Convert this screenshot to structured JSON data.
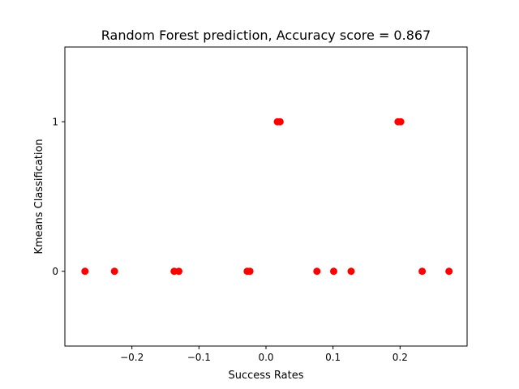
{
  "chart_data": {
    "type": "scatter",
    "title": "Random Forest prediction, Accuracy score = 0.867",
    "xlabel": "Success Rates",
    "ylabel": "Kmeans Classification",
    "xlim": [
      -0.3,
      0.3
    ],
    "ylim": [
      -0.5,
      1.5
    ],
    "xticks": [
      -0.2,
      -0.1,
      0.0,
      0.1,
      0.2
    ],
    "xtick_labels": [
      "−0.2",
      "−0.1",
      "0.0",
      "0.1",
      "0.2"
    ],
    "yticks": [
      0,
      1
    ],
    "ytick_labels": [
      "0",
      "1"
    ],
    "grid": false,
    "marker_color": "#ff0000",
    "points": [
      {
        "x": -0.27,
        "y": 0
      },
      {
        "x": -0.226,
        "y": 0
      },
      {
        "x": -0.137,
        "y": 0
      },
      {
        "x": -0.13,
        "y": 0
      },
      {
        "x": -0.028,
        "y": 0
      },
      {
        "x": -0.024,
        "y": 0
      },
      {
        "x": 0.076,
        "y": 0
      },
      {
        "x": 0.101,
        "y": 0
      },
      {
        "x": 0.127,
        "y": 0
      },
      {
        "x": 0.233,
        "y": 0
      },
      {
        "x": 0.273,
        "y": 0
      },
      {
        "x": 0.017,
        "y": 1
      },
      {
        "x": 0.021,
        "y": 1
      },
      {
        "x": 0.197,
        "y": 1
      },
      {
        "x": 0.201,
        "y": 1
      }
    ]
  }
}
